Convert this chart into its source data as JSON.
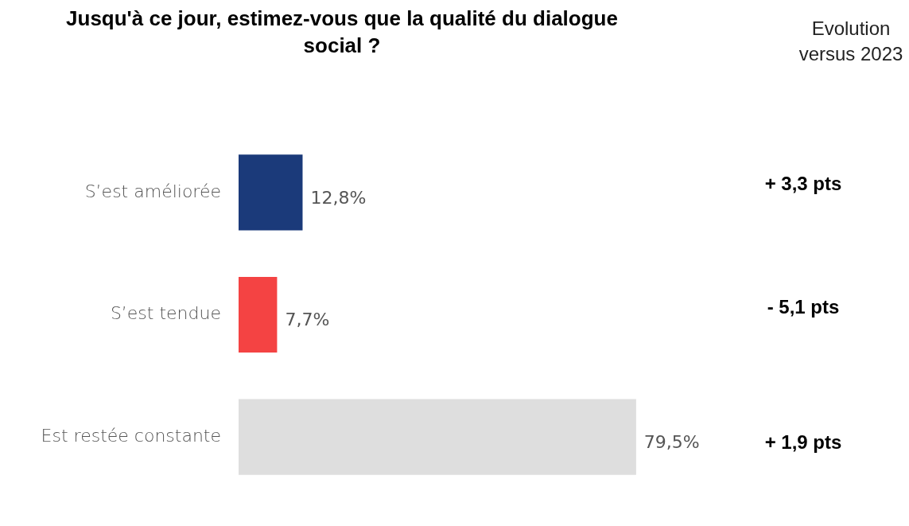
{
  "chart_data": {
    "type": "bar",
    "orientation": "horizontal",
    "title": "Jusqu'à ce jour, estimez-vous que la qualité du dialogue social ?",
    "categories": [
      "S’est améliorée",
      "S’est tendue",
      "Est restée constante"
    ],
    "values": [
      12.8,
      7.7,
      79.5
    ],
    "colors": [
      "#1b3a7a",
      "#f44343",
      "#dedede"
    ],
    "value_labels": [
      "12,8%",
      "7,7%",
      "79,5%"
    ],
    "legend_title": "Evolution versus 2023",
    "annotations": [
      "+ 3,3 pts",
      "- 5,1 pts",
      "+ 1,9 pts"
    ],
    "grid": false,
    "legend": false
  }
}
